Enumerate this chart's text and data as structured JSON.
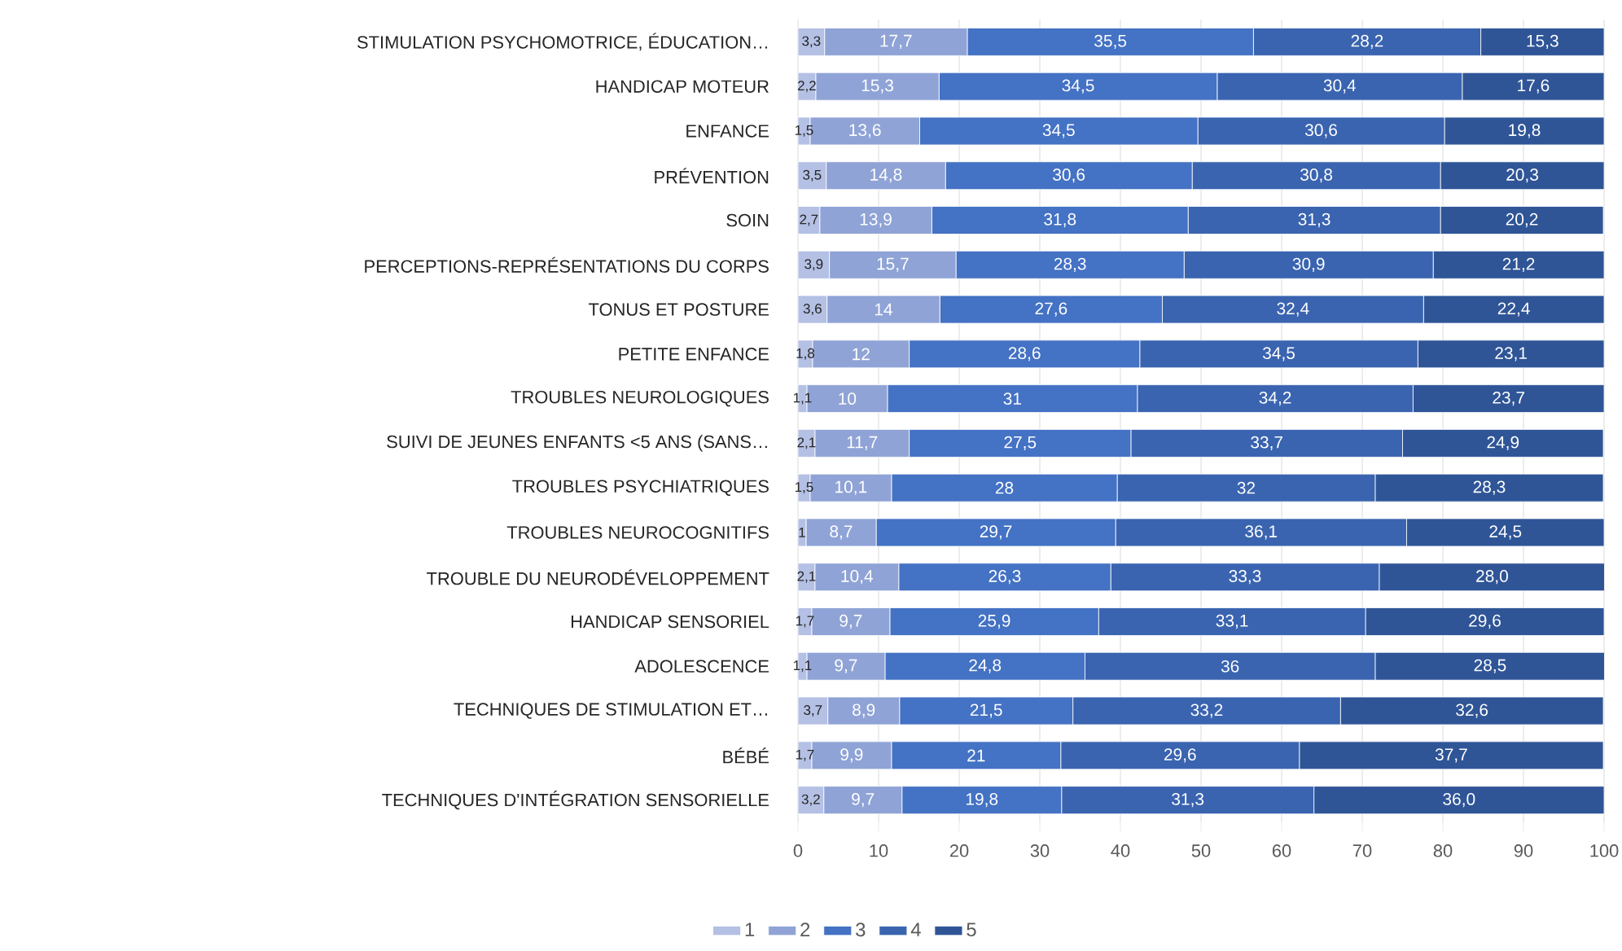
{
  "chart_data": {
    "type": "bar",
    "orientation": "horizontal",
    "stacked": true,
    "categories": [
      "STIMULATION PSYCHOMOTRICE, ÉDUCATION…",
      "HANDICAP MOTEUR",
      "ENFANCE",
      "PRÉVENTION",
      "SOIN",
      "PERCEPTIONS-REPRÉSENTATIONS DU CORPS",
      "TONUS ET POSTURE",
      "PETITE ENFANCE",
      "TROUBLES NEUROLOGIQUES",
      "SUIVI DE JEUNES ENFANTS <5 ANS (SANS…",
      "TROUBLES PSYCHIATRIQUES",
      "TROUBLES NEUROCOGNITIFS",
      "TROUBLE DU NEURODÉVELOPPEMENT",
      "HANDICAP SENSORIEL",
      "ADOLESCENCE",
      "TECHNIQUES DE STIMULATION ET…",
      "BÉBÉ",
      "TECHNIQUES D'INTÉGRATION SENSORIELLE"
    ],
    "series": [
      {
        "name": "1",
        "color": "#b4c0e4",
        "values": [
          3.3,
          2.2,
          1.5,
          3.5,
          2.7,
          3.9,
          3.6,
          1.8,
          1.1,
          2.1,
          1.5,
          1,
          2.1,
          1.7,
          1.1,
          3.7,
          1.7,
          3.2
        ],
        "value_labels": [
          "3,3",
          "2,2",
          "1,5",
          "3,5",
          "2,7",
          "3,9",
          "3,6",
          "1,8",
          "1,1",
          "2,1",
          "1,5",
          "1",
          "2,1",
          "1,7",
          "1,1",
          "3,7",
          "1,7",
          "3,2"
        ]
      },
      {
        "name": "2",
        "color": "#8fa3d6",
        "values": [
          17.7,
          15.3,
          13.6,
          14.8,
          13.9,
          15.7,
          14,
          12,
          10,
          11.7,
          10.1,
          8.7,
          10.4,
          9.7,
          9.7,
          8.9,
          9.9,
          9.7
        ],
        "value_labels": [
          "17,7",
          "15,3",
          "13,6",
          "14,8",
          "13,9",
          "15,7",
          "14",
          "12",
          "10",
          "11,7",
          "10,1",
          "8,7",
          "10,4",
          "9,7",
          "9,7",
          "8,9",
          "9,9",
          "9,7"
        ]
      },
      {
        "name": "3",
        "color": "#4472c4",
        "values": [
          35.5,
          34.5,
          34.5,
          30.6,
          31.8,
          28.3,
          27.6,
          28.6,
          31,
          27.5,
          28,
          29.7,
          26.3,
          25.9,
          24.8,
          21.5,
          21,
          19.8
        ],
        "value_labels": [
          "35,5",
          "34,5",
          "34,5",
          "30,6",
          "31,8",
          "28,3",
          "27,6",
          "28,6",
          "31",
          "27,5",
          "28",
          "29,7",
          "26,3",
          "25,9",
          "24,8",
          "21,5",
          "21",
          "19,8"
        ]
      },
      {
        "name": "4",
        "color": "#3a64b0",
        "values": [
          28.2,
          30.4,
          30.6,
          30.8,
          31.3,
          30.9,
          32.4,
          34.5,
          34.2,
          33.7,
          32,
          36.1,
          33.3,
          33.1,
          36,
          33.2,
          29.6,
          31.3
        ],
        "value_labels": [
          "28,2",
          "30,4",
          "30,6",
          "30,8",
          "31,3",
          "30,9",
          "32,4",
          "34,5",
          "34,2",
          "33,7",
          "32",
          "36,1",
          "33,3",
          "33,1",
          "36",
          "33,2",
          "29,6",
          "31,3"
        ]
      },
      {
        "name": "5",
        "color": "#2f5597",
        "values": [
          15.3,
          17.6,
          19.8,
          20.3,
          20.2,
          21.2,
          22.4,
          23.1,
          23.7,
          24.9,
          28.3,
          24.5,
          28.0,
          29.6,
          28.5,
          32.6,
          37.7,
          36.0
        ],
        "value_labels": [
          "15,3",
          "17,6",
          "19,8",
          "20,3",
          "20,2",
          "21,2",
          "22,4",
          "23,1",
          "23,7",
          "24,9",
          "28,3",
          "24,5",
          "28,0",
          "29,6",
          "28,5",
          "32,6",
          "37,7",
          "36,0"
        ]
      }
    ],
    "xlim": [
      0,
      100
    ],
    "xticks": [
      0,
      10,
      20,
      30,
      40,
      50,
      60,
      70,
      80,
      90,
      100
    ],
    "grid": "x",
    "legend": "bottom"
  }
}
